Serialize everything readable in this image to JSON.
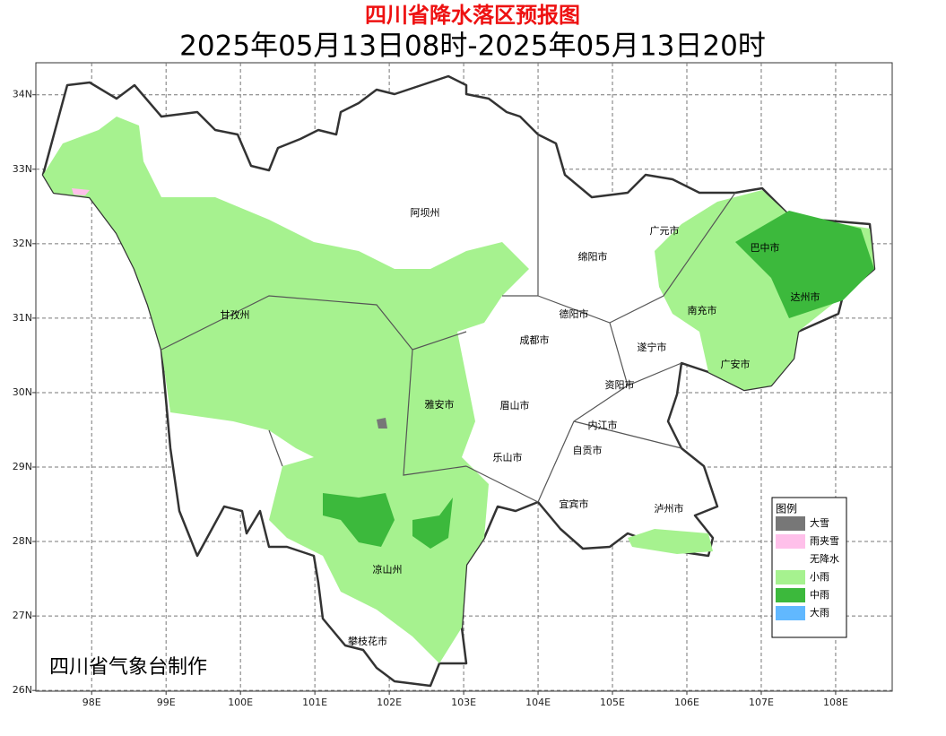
{
  "title": "四川省降水落区预报图",
  "subtitle": "2025年05月13日08时-2025年05月13日20时",
  "credit": "四川省气象台制作",
  "lonlim": [
    97.25,
    108.76
  ],
  "latlim": [
    25.99,
    34.43
  ],
  "lon_ticks": [
    {
      "value": 98,
      "label": "98E"
    },
    {
      "value": 99,
      "label": "99E"
    },
    {
      "value": 100,
      "label": "100E"
    },
    {
      "value": 101,
      "label": "101E"
    },
    {
      "value": 102,
      "label": "102E"
    },
    {
      "value": 103,
      "label": "103E"
    },
    {
      "value": 104,
      "label": "104E"
    },
    {
      "value": 105,
      "label": "105E"
    },
    {
      "value": 106,
      "label": "106E"
    },
    {
      "value": 107,
      "label": "107E"
    },
    {
      "value": 108,
      "label": "108E"
    }
  ],
  "lat_ticks": [
    {
      "value": 34,
      "label": "34N"
    },
    {
      "value": 33,
      "label": "33N"
    },
    {
      "value": 32,
      "label": "32N"
    },
    {
      "value": 31,
      "label": "31N"
    },
    {
      "value": 30,
      "label": "30N"
    },
    {
      "value": 29,
      "label": "29N"
    },
    {
      "value": 28,
      "label": "28N"
    },
    {
      "value": 27,
      "label": "27N"
    },
    {
      "value": 26,
      "label": "26N"
    }
  ],
  "cities": [
    "阿坝州",
    "广元市",
    "巴中市",
    "绵阳市",
    "甘孜州",
    "德阳市",
    "南充市",
    "达州市",
    "成都市",
    "遂宁市",
    "广安市",
    "资阳市",
    "雅安市",
    "眉山市",
    "内江市",
    "自贡市",
    "乐山市",
    "宜宾市",
    "泸州市",
    "凉山州",
    "攀枝花市"
  ],
  "legend": {
    "title": "图例",
    "items": [
      {
        "label": "大雪",
        "color": "#777777"
      },
      {
        "label": "雨夹雪",
        "color": "#ffc0ea"
      },
      {
        "label": "无降水",
        "color": "#ffffff"
      },
      {
        "label": "小雨",
        "color": "#a6f28f"
      },
      {
        "label": "中雨",
        "color": "#3cb93c"
      },
      {
        "label": "大雨",
        "color": "#61b8ff"
      }
    ]
  }
}
